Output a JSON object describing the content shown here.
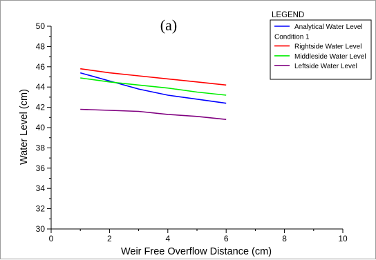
{
  "chart_data": {
    "type": "line",
    "panel_label": "(a)",
    "xlabel": "Weir Free Overflow Distance (cm)",
    "ylabel": "Water Level (cm)",
    "xlim": [
      0,
      10
    ],
    "ylim": [
      30,
      50
    ],
    "x_ticks": [
      0,
      2,
      4,
      6,
      8,
      10
    ],
    "y_ticks": [
      30,
      32,
      34,
      36,
      38,
      40,
      42,
      44,
      46,
      48,
      50
    ],
    "grid": false,
    "legend": {
      "title": "LEGEND",
      "placement": "top-right",
      "entries": [
        {
          "label": "Analytical Water Level",
          "series_index": 0
        },
        {
          "label": "Condition 1",
          "series_index": null
        },
        {
          "label": "Rightside Water Level",
          "series_index": 1
        },
        {
          "label": "Middleside Water Level",
          "series_index": 2
        },
        {
          "label": "Leftside Water Level",
          "series_index": 3
        }
      ]
    },
    "series": [
      {
        "name": "Analytical Water Level",
        "color": "#0000ff",
        "x": [
          1,
          2,
          3,
          4,
          5,
          6
        ],
        "y": [
          45.4,
          44.6,
          43.8,
          43.2,
          42.8,
          42.4
        ]
      },
      {
        "name": "Rightside Water Level",
        "color": "#ff0000",
        "x": [
          1,
          2,
          3,
          4,
          5,
          6
        ],
        "y": [
          45.8,
          45.4,
          45.1,
          44.8,
          44.5,
          44.2
        ]
      },
      {
        "name": "Middleside Water Level",
        "color": "#00ee00",
        "x": [
          1,
          2,
          3,
          4,
          5,
          6
        ],
        "y": [
          44.9,
          44.5,
          44.2,
          43.9,
          43.5,
          43.2
        ]
      },
      {
        "name": "Leftside Water Level",
        "color": "#800080",
        "x": [
          1,
          2,
          3,
          4,
          5,
          6
        ],
        "y": [
          41.8,
          41.7,
          41.6,
          41.3,
          41.1,
          40.8
        ]
      }
    ]
  }
}
